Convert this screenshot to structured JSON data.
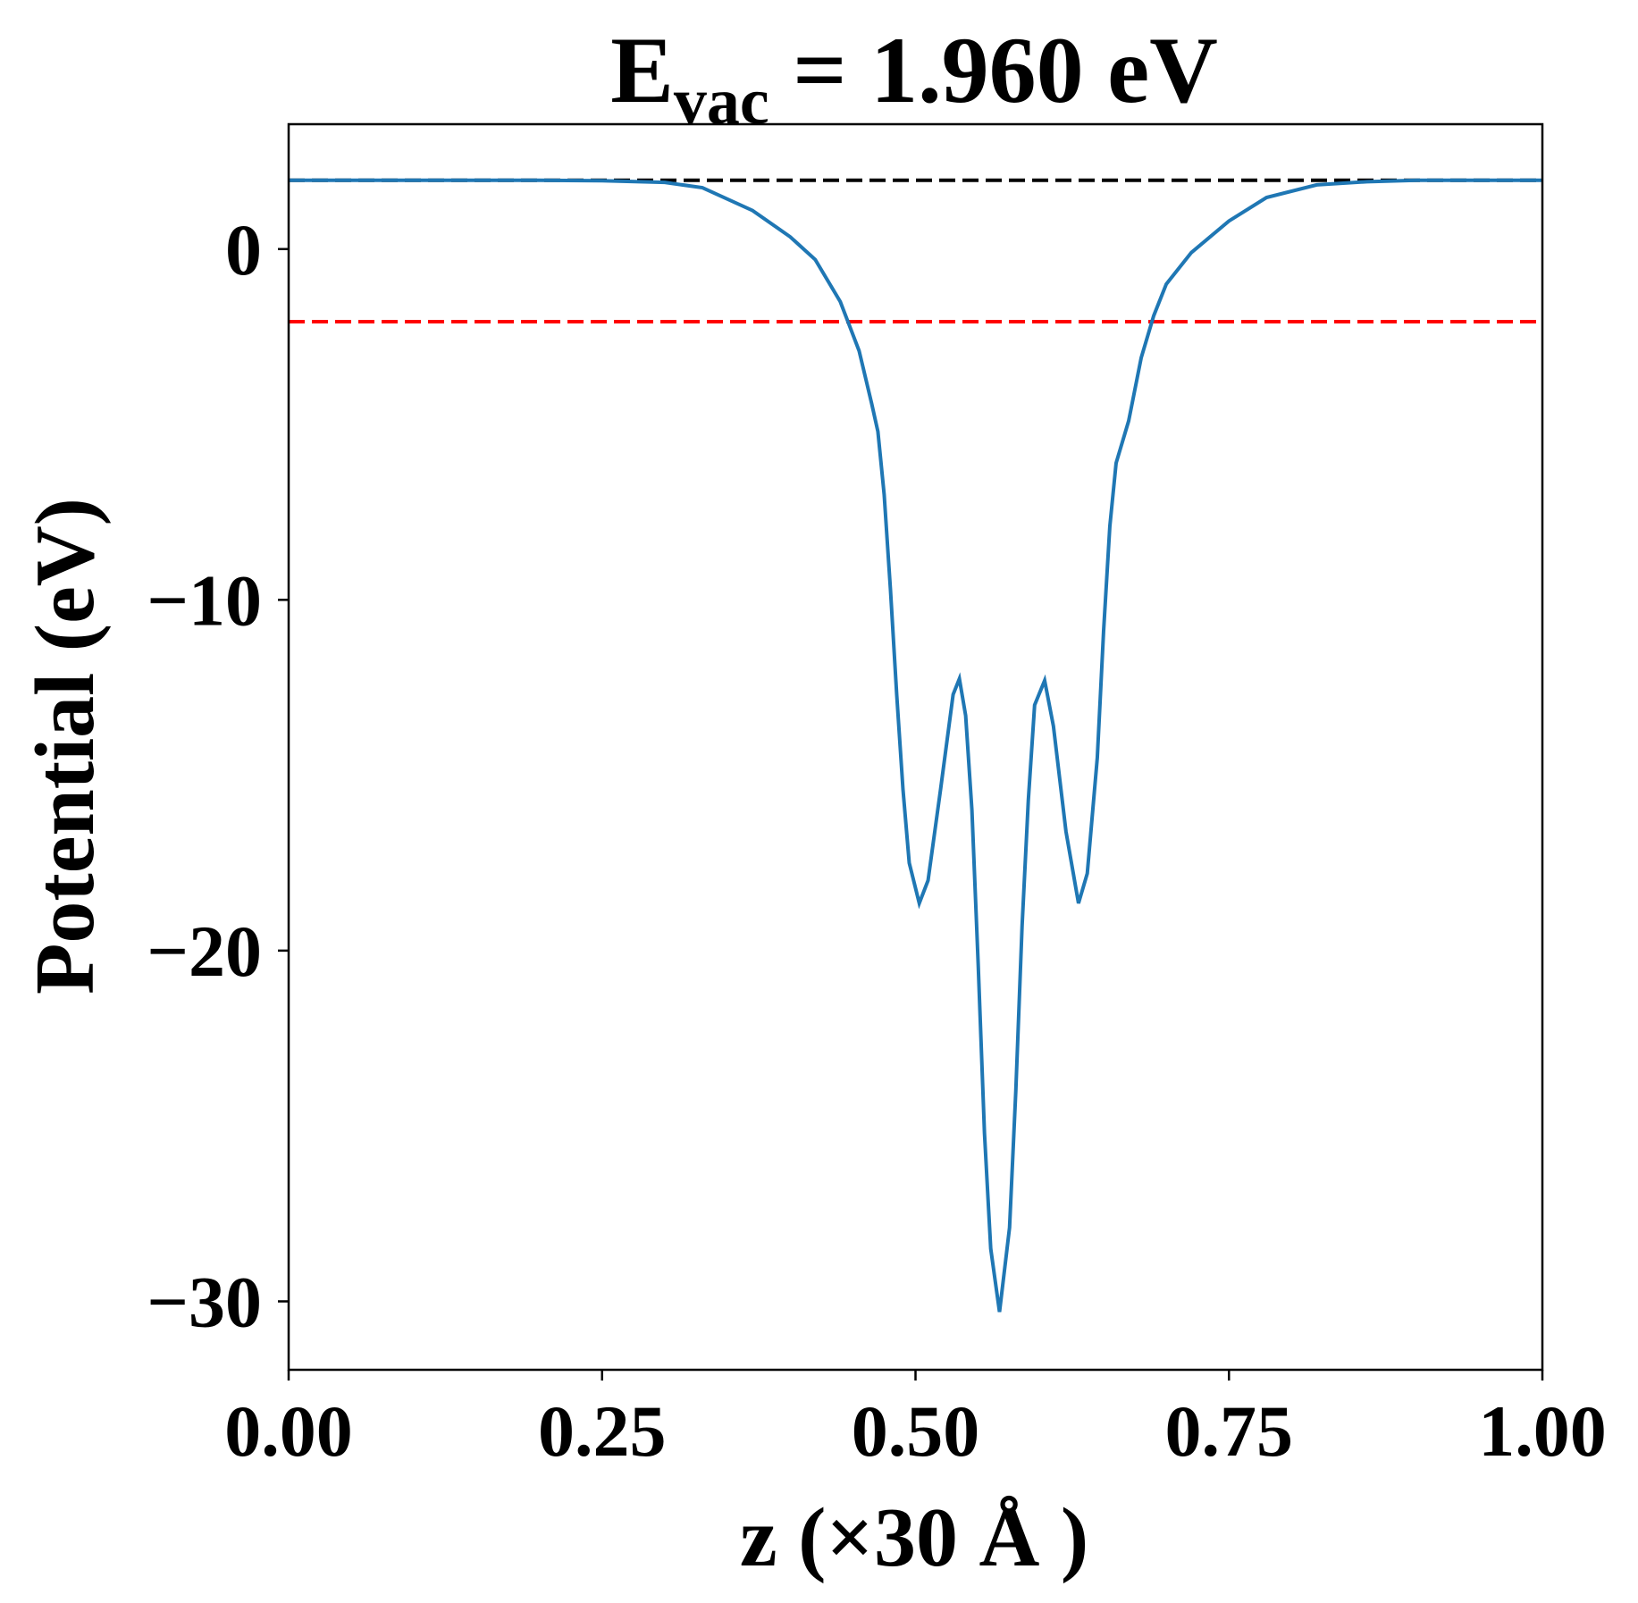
{
  "chart_data": {
    "type": "line",
    "title": "E",
    "title_subscript": "vac",
    "title_rest": " = 1.960 eV",
    "x_label": "z (×30 Å )",
    "y_label": "Potential (eV)",
    "x": [
      0,
      0.1,
      0.2,
      0.25,
      0.3,
      0.33,
      0.37,
      0.4,
      0.42,
      0.44,
      0.455,
      0.465,
      0.47,
      0.475,
      0.48,
      0.485,
      0.49,
      0.495,
      0.503,
      0.51,
      0.52,
      0.53,
      0.535,
      0.54,
      0.545,
      0.55,
      0.555,
      0.56,
      0.567,
      0.575,
      0.58,
      0.585,
      0.59,
      0.595,
      0.603,
      0.61,
      0.62,
      0.63,
      0.637,
      0.645,
      0.65,
      0.655,
      0.66,
      0.67,
      0.68,
      0.69,
      0.7,
      0.72,
      0.75,
      0.78,
      0.82,
      0.86,
      0.9,
      1.0
    ],
    "series": [
      {
        "color": "#1f77b4",
        "values": [
          1.96,
          1.96,
          1.96,
          1.95,
          1.9,
          1.75,
          1.1,
          0.35,
          -0.3,
          -1.5,
          -2.9,
          -4.4,
          -5.2,
          -7.0,
          -9.7,
          -12.7,
          -15.4,
          -17.5,
          -18.65,
          -18.0,
          -15.4,
          -12.7,
          -12.25,
          -13.3,
          -16.0,
          -20.4,
          -25.2,
          -28.5,
          -30.3,
          -27.9,
          -24.0,
          -19.3,
          -15.7,
          -13.0,
          -12.3,
          -13.6,
          -16.6,
          -18.65,
          -17.8,
          -14.5,
          -10.9,
          -7.9,
          -6.1,
          -4.9,
          -3.1,
          -1.9,
          -1.0,
          -0.1,
          0.8,
          1.47,
          1.83,
          1.92,
          1.96,
          1.96
        ]
      }
    ],
    "hlines": [
      {
        "value": 1.96,
        "color": "#000000"
      },
      {
        "value": -2.07,
        "color": "#ff0000"
      }
    ],
    "xlim": [
      0,
      1
    ],
    "ylim": [
      -31.95,
      3.56
    ],
    "xticks": [
      {
        "value": 0,
        "label": "0.00"
      },
      {
        "value": 0.25,
        "label": "0.25"
      },
      {
        "value": 0.5,
        "label": "0.50"
      },
      {
        "value": 0.75,
        "label": "0.75"
      },
      {
        "value": 1,
        "label": "1.00"
      }
    ],
    "yticks": [
      {
        "value": -30,
        "label": "−30"
      },
      {
        "value": -20,
        "label": "−20"
      },
      {
        "value": -10,
        "label": "−10"
      },
      0
    ]
  }
}
